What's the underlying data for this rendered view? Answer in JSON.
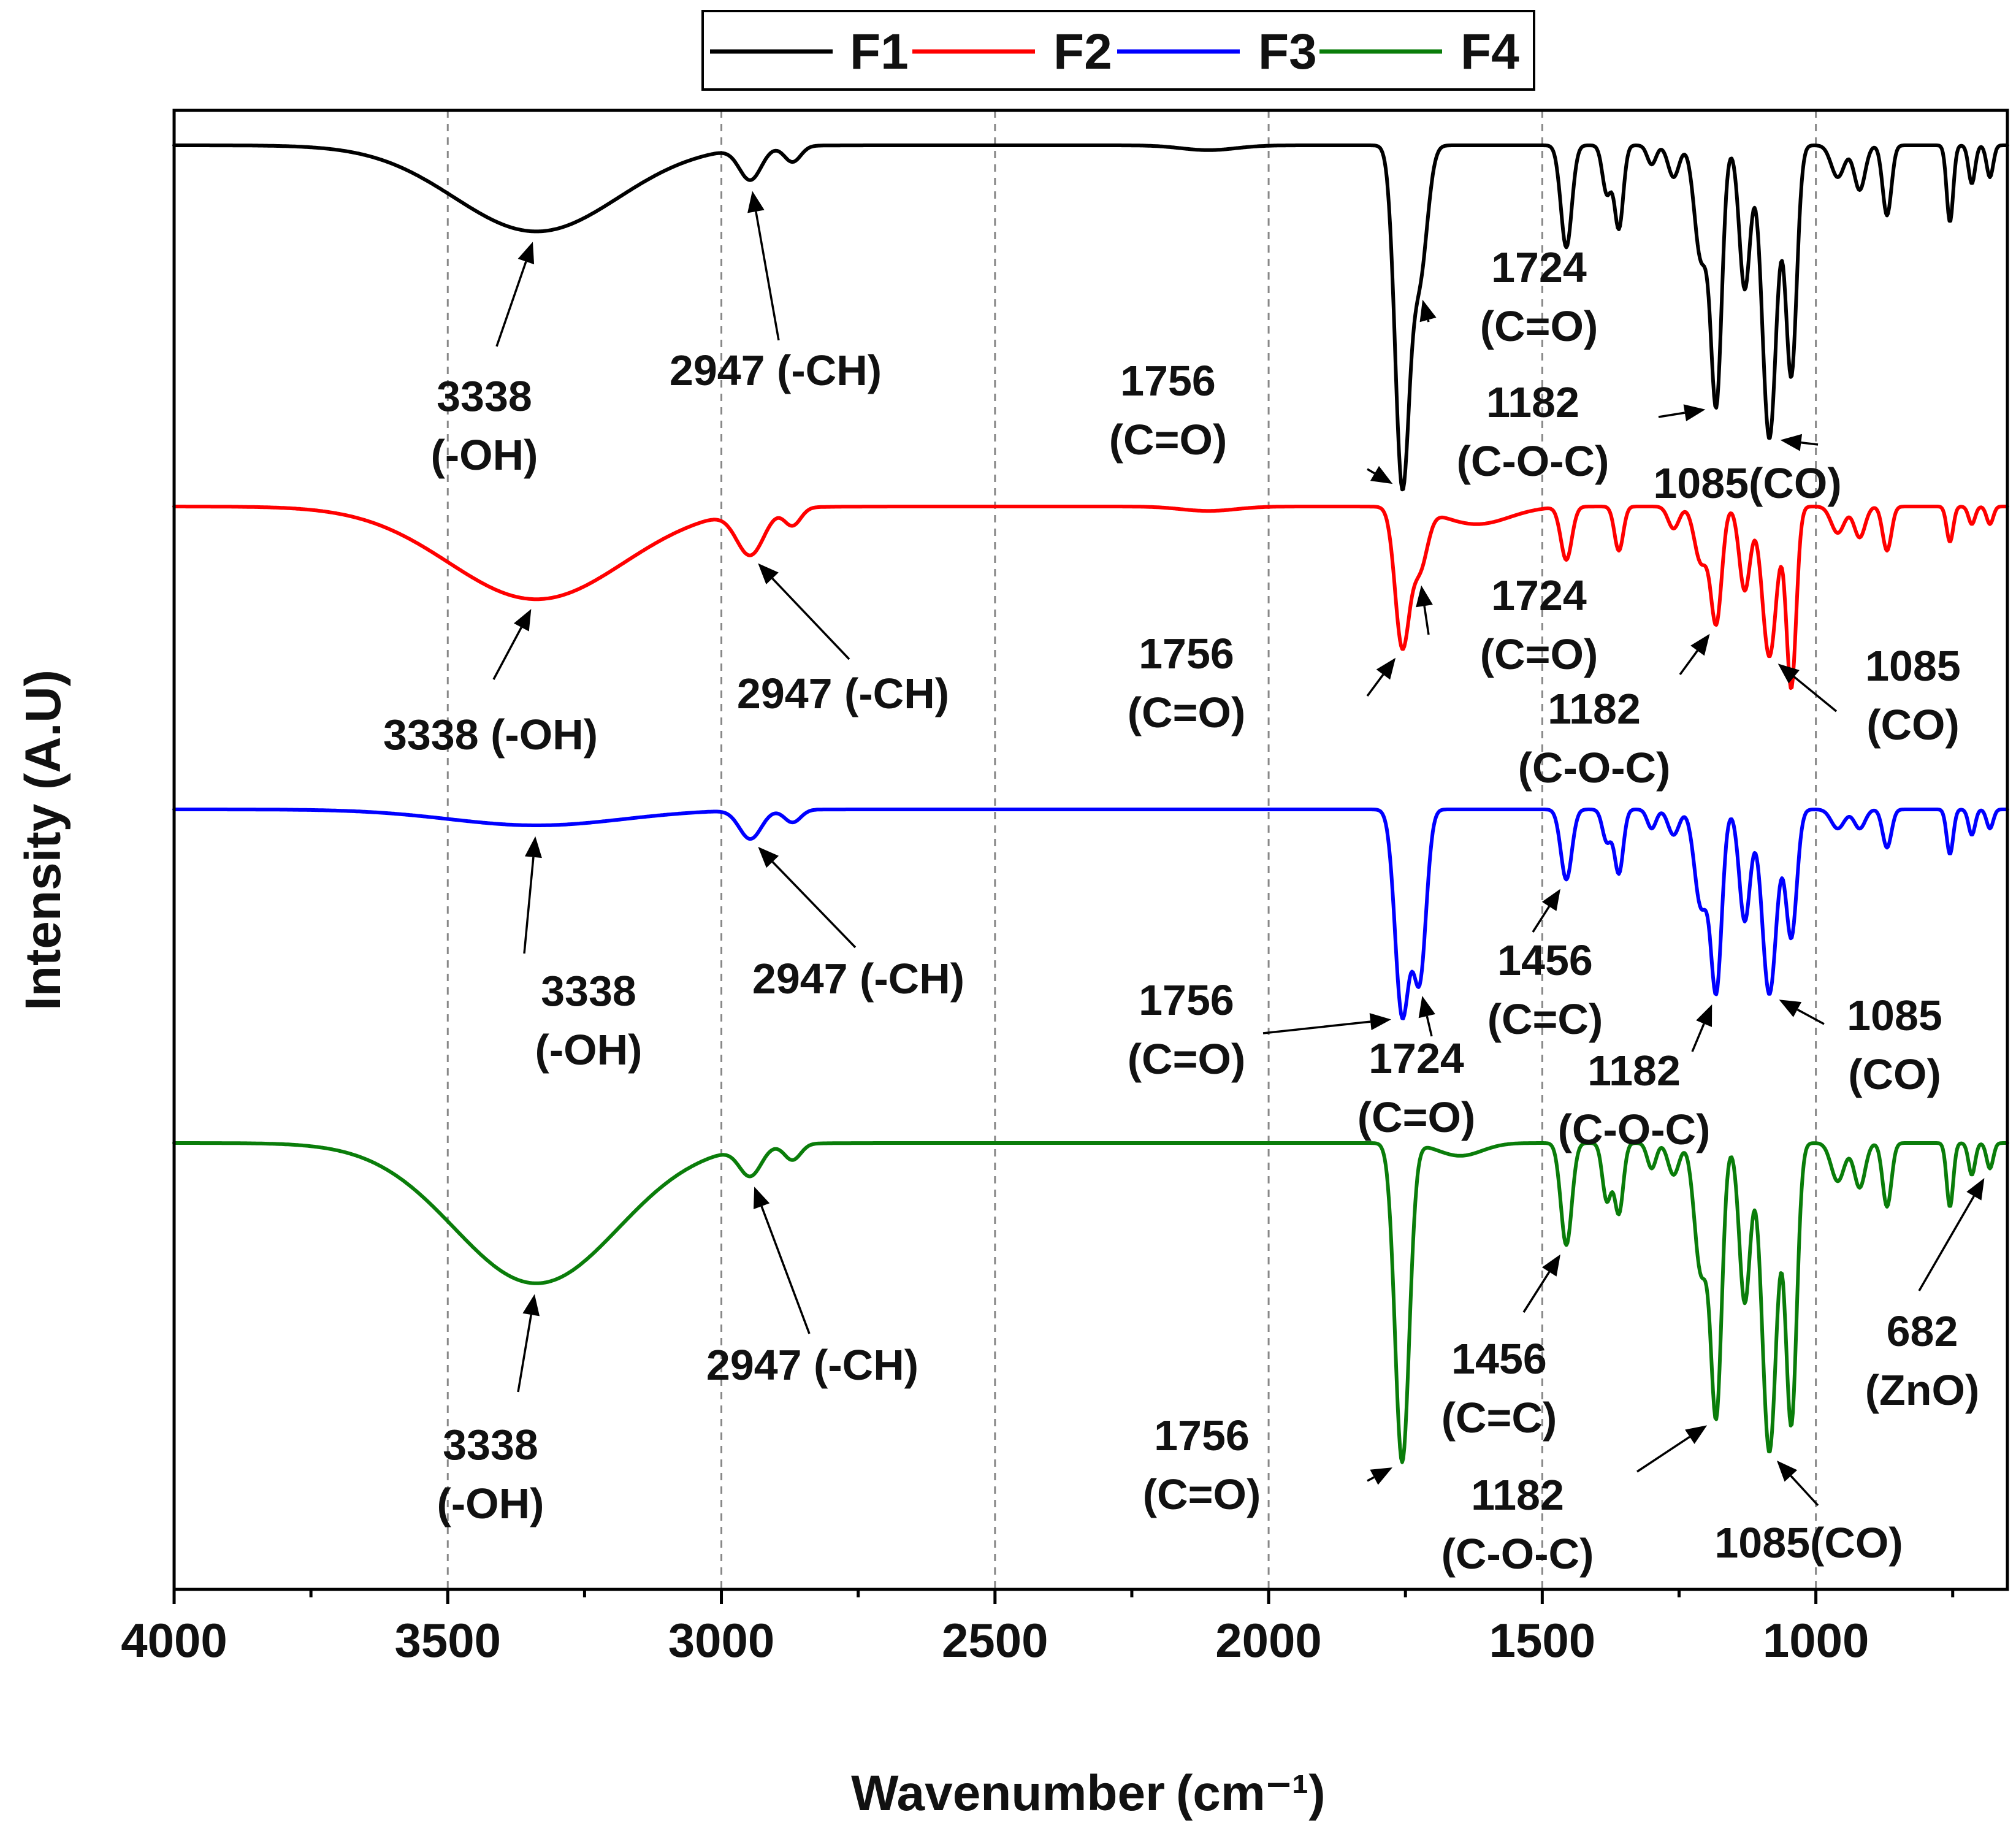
{
  "chart_data": {
    "type": "line",
    "title": "",
    "xlabel": "Wavenumber",
    "xlabel_unit": "(cm⁻¹)",
    "ylabel": "Intensity (A.U)",
    "xlim": [
      4000,
      650
    ],
    "x_ticks": [
      "4000",
      "3500",
      "3000",
      "2500",
      "2000",
      "1500",
      "1000"
    ],
    "x_tick_values": [
      4000,
      3500,
      3000,
      2500,
      2000,
      1500,
      1000
    ],
    "grid_x": [
      3500,
      3000,
      2500,
      2000,
      1500,
      1000
    ],
    "legend_position": "top-center",
    "legend": [
      "F1",
      "F2",
      "F3",
      "F4"
    ],
    "series": [
      {
        "name": "F1",
        "color": "#000000",
        "baseline": 0.0,
        "bandScale": 1.0,
        "bands": [
          {
            "c": 3338,
            "d": 0.27,
            "w": 150
          },
          {
            "c": 2947,
            "d": 0.1,
            "w": 20
          },
          {
            "c": 2870,
            "d": 0.05,
            "w": 15
          },
          {
            "c": 2110,
            "d": 0.015,
            "w": 50
          },
          {
            "c": 1756,
            "d": 1.05,
            "w": 13
          },
          {
            "c": 1724,
            "d": 0.4,
            "w": 14
          },
          {
            "c": 1456,
            "d": 0.32,
            "w": 10
          },
          {
            "c": 1382,
            "d": 0.15,
            "w": 8
          },
          {
            "c": 1360,
            "d": 0.26,
            "w": 8
          },
          {
            "c": 1300,
            "d": 0.06,
            "w": 8
          },
          {
            "c": 1260,
            "d": 0.1,
            "w": 10
          },
          {
            "c": 1210,
            "d": 0.35,
            "w": 12
          },
          {
            "c": 1182,
            "d": 0.8,
            "w": 10
          },
          {
            "c": 1130,
            "d": 0.45,
            "w": 10
          },
          {
            "c": 1085,
            "d": 0.92,
            "w": 13
          },
          {
            "c": 1045,
            "d": 0.72,
            "w": 10
          },
          {
            "c": 960,
            "d": 0.1,
            "w": 12
          },
          {
            "c": 920,
            "d": 0.14,
            "w": 10
          },
          {
            "c": 870,
            "d": 0.22,
            "w": 8
          },
          {
            "c": 755,
            "d": 0.24,
            "w": 6
          },
          {
            "c": 715,
            "d": 0.12,
            "w": 6
          },
          {
            "c": 682,
            "d": 0.1,
            "w": 6
          }
        ]
      },
      {
        "name": "F2",
        "color": "#ff0000",
        "baseline": 0.0,
        "bandScale": 1.0,
        "bands": [
          {
            "c": 3338,
            "d": 0.42,
            "w": 160
          },
          {
            "c": 2947,
            "d": 0.2,
            "w": 25
          },
          {
            "c": 2870,
            "d": 0.08,
            "w": 15
          },
          {
            "c": 2110,
            "d": 0.02,
            "w": 50
          },
          {
            "c": 1756,
            "d": 0.62,
            "w": 13
          },
          {
            "c": 1724,
            "d": 0.26,
            "w": 14
          },
          {
            "c": 1620,
            "d": 0.08,
            "w": 60
          },
          {
            "c": 1456,
            "d": 0.24,
            "w": 10
          },
          {
            "c": 1360,
            "d": 0.2,
            "w": 8
          },
          {
            "c": 1260,
            "d": 0.1,
            "w": 10
          },
          {
            "c": 1210,
            "d": 0.25,
            "w": 12
          },
          {
            "c": 1182,
            "d": 0.52,
            "w": 10
          },
          {
            "c": 1130,
            "d": 0.38,
            "w": 10
          },
          {
            "c": 1085,
            "d": 0.68,
            "w": 13
          },
          {
            "c": 1045,
            "d": 0.82,
            "w": 9
          },
          {
            "c": 960,
            "d": 0.12,
            "w": 12
          },
          {
            "c": 920,
            "d": 0.14,
            "w": 10
          },
          {
            "c": 870,
            "d": 0.2,
            "w": 8
          },
          {
            "c": 755,
            "d": 0.16,
            "w": 6
          },
          {
            "c": 715,
            "d": 0.08,
            "w": 6
          },
          {
            "c": 682,
            "d": 0.08,
            "w": 6
          }
        ]
      },
      {
        "name": "F3",
        "color": "#0000ff",
        "baseline": 0.0,
        "bandScale": 1.0,
        "bands": [
          {
            "c": 3338,
            "d": 0.05,
            "w": 160
          },
          {
            "c": 2947,
            "d": 0.09,
            "w": 20
          },
          {
            "c": 2870,
            "d": 0.04,
            "w": 15
          },
          {
            "c": 1756,
            "d": 0.64,
            "w": 13
          },
          {
            "c": 1724,
            "d": 0.52,
            "w": 12
          },
          {
            "c": 1456,
            "d": 0.22,
            "w": 10
          },
          {
            "c": 1382,
            "d": 0.1,
            "w": 8
          },
          {
            "c": 1360,
            "d": 0.2,
            "w": 8
          },
          {
            "c": 1300,
            "d": 0.06,
            "w": 8
          },
          {
            "c": 1260,
            "d": 0.08,
            "w": 10
          },
          {
            "c": 1210,
            "d": 0.3,
            "w": 12
          },
          {
            "c": 1182,
            "d": 0.56,
            "w": 10
          },
          {
            "c": 1130,
            "d": 0.35,
            "w": 10
          },
          {
            "c": 1085,
            "d": 0.58,
            "w": 13
          },
          {
            "c": 1045,
            "d": 0.4,
            "w": 10
          },
          {
            "c": 960,
            "d": 0.06,
            "w": 12
          },
          {
            "c": 920,
            "d": 0.06,
            "w": 10
          },
          {
            "c": 870,
            "d": 0.12,
            "w": 8
          },
          {
            "c": 755,
            "d": 0.14,
            "w": 6
          },
          {
            "c": 715,
            "d": 0.08,
            "w": 6
          },
          {
            "c": 682,
            "d": 0.06,
            "w": 6
          }
        ]
      },
      {
        "name": "F4",
        "color": "#0a7d0a",
        "baseline": 0.0,
        "bandScale": 1.0,
        "bands": [
          {
            "c": 3338,
            "d": 0.44,
            "w": 150
          },
          {
            "c": 2947,
            "d": 0.09,
            "w": 20
          },
          {
            "c": 2870,
            "d": 0.05,
            "w": 15
          },
          {
            "c": 1756,
            "d": 1.0,
            "w": 13
          },
          {
            "c": 1650,
            "d": 0.04,
            "w": 40
          },
          {
            "c": 1456,
            "d": 0.32,
            "w": 10
          },
          {
            "c": 1382,
            "d": 0.18,
            "w": 8
          },
          {
            "c": 1360,
            "d": 0.22,
            "w": 8
          },
          {
            "c": 1300,
            "d": 0.08,
            "w": 8
          },
          {
            "c": 1260,
            "d": 0.1,
            "w": 10
          },
          {
            "c": 1210,
            "d": 0.4,
            "w": 12
          },
          {
            "c": 1182,
            "d": 0.84,
            "w": 10
          },
          {
            "c": 1130,
            "d": 0.5,
            "w": 10
          },
          {
            "c": 1085,
            "d": 0.97,
            "w": 13
          },
          {
            "c": 1045,
            "d": 0.88,
            "w": 10
          },
          {
            "c": 960,
            "d": 0.12,
            "w": 12
          },
          {
            "c": 920,
            "d": 0.14,
            "w": 10
          },
          {
            "c": 870,
            "d": 0.2,
            "w": 8
          },
          {
            "c": 755,
            "d": 0.2,
            "w": 6
          },
          {
            "c": 715,
            "d": 0.1,
            "w": 6
          },
          {
            "c": 682,
            "d": 0.08,
            "w": 6
          }
        ]
      }
    ],
    "annotations": [
      {
        "series": "F1",
        "lines": [
          "3338",
          "(-OH)"
        ],
        "peak": 3338
      },
      {
        "series": "F1",
        "lines": [
          "2947 (-CH)"
        ],
        "peak": 2947
      },
      {
        "series": "F1",
        "lines": [
          "1724",
          "(C=O)"
        ],
        "peak": 1724
      },
      {
        "series": "F1",
        "lines": [
          "1756",
          "(C=O)"
        ],
        "peak": 1756
      },
      {
        "series": "F1",
        "lines": [
          "1182",
          "(C-O-C)"
        ],
        "peak": 1182
      },
      {
        "series": "F1",
        "lines": [
          "1085(CO)"
        ],
        "peak": 1085
      },
      {
        "series": "F2",
        "lines": [
          "3338 (-OH)"
        ],
        "peak": 3338
      },
      {
        "series": "F2",
        "lines": [
          "2947 (-CH)"
        ],
        "peak": 2947
      },
      {
        "series": "F2",
        "lines": [
          "1724",
          "(C=O)"
        ],
        "peak": 1724
      },
      {
        "series": "F2",
        "lines": [
          "1756",
          "(C=O)"
        ],
        "peak": 1756
      },
      {
        "series": "F2",
        "lines": [
          "1182",
          "(C-O-C)"
        ],
        "peak": 1182
      },
      {
        "series": "F2",
        "lines": [
          "1085",
          "(CO)"
        ],
        "peak": 1085
      },
      {
        "series": "F3",
        "lines": [
          "3338",
          "(-OH)"
        ],
        "peak": 3338
      },
      {
        "series": "F3",
        "lines": [
          "2947 (-CH)"
        ],
        "peak": 2947
      },
      {
        "series": "F3",
        "lines": [
          "1756",
          "(C=O)"
        ],
        "peak": 1756
      },
      {
        "series": "F3",
        "lines": [
          "1724",
          "(C=O)"
        ],
        "peak": 1724
      },
      {
        "series": "F3",
        "lines": [
          "1456",
          "(C=C)"
        ],
        "peak": 1456
      },
      {
        "series": "F3",
        "lines": [
          "1182",
          "(C-O-C)"
        ],
        "peak": 1182
      },
      {
        "series": "F3",
        "lines": [
          "1085",
          "(CO)"
        ],
        "peak": 1085
      },
      {
        "series": "F4",
        "lines": [
          "3338",
          "(-OH)"
        ],
        "peak": 3338
      },
      {
        "series": "F4",
        "lines": [
          "2947 (-CH)"
        ],
        "peak": 2947
      },
      {
        "series": "F4",
        "lines": [
          "1456",
          "(C=C)"
        ],
        "peak": 1456
      },
      {
        "series": "F4",
        "lines": [
          "1756",
          "(C=O)"
        ],
        "peak": 1756
      },
      {
        "series": "F4",
        "lines": [
          "1182",
          "(C-O-C)"
        ],
        "peak": 1182
      },
      {
        "series": "F4",
        "lines": [
          "1085(CO)"
        ],
        "peak": 1085
      },
      {
        "series": "F4",
        "lines": [
          "682",
          "(ZnO)"
        ],
        "peak": 682
      }
    ]
  }
}
